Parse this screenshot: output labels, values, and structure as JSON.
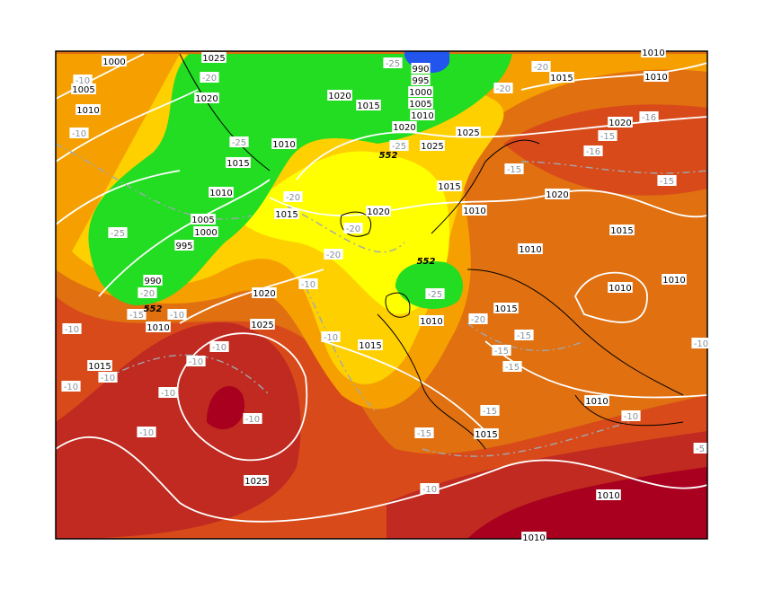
{
  "colors": {
    "green": "#22dd22",
    "yellow": "#ffff00",
    "yellow_orange": "#ffd000",
    "orange": "#f5a000",
    "dark_orange": "#e07010",
    "red_orange": "#d84a1a",
    "red": "#c02a20",
    "dark_red": "#a8001e",
    "blue": "#2255ee",
    "isobar": "#ffffff",
    "isotherm": "#a0a8b0"
  },
  "isobar_labels": [
    "1000",
    "1005",
    "1010",
    "1025",
    "1020",
    "1020",
    "1015",
    "990",
    "995",
    "1000",
    "1005",
    "1010",
    "1020",
    "1025",
    "1025",
    "1015",
    "1010",
    "1020",
    "1010",
    "1015",
    "1010",
    "1005",
    "1000",
    "995",
    "990",
    "1015",
    "1010",
    "1020",
    "1015",
    "1020",
    "1015",
    "1010",
    "1010",
    "1010",
    "1020",
    "1025",
    "1010",
    "1015",
    "1015",
    "1010",
    "1015",
    "1010",
    "1015",
    "1025",
    "1010",
    "1010",
    "1010"
  ],
  "isotherm_labels": [
    "-20",
    "-10",
    "-10",
    "-25",
    "-20",
    "-25",
    "-20",
    "-15",
    "-10",
    "-20",
    "-20",
    "-10",
    "-10",
    "-10",
    "-10",
    "-10",
    "-10",
    "-10",
    "-10",
    "-10",
    "-10",
    "-25",
    "-20",
    "-20",
    "-25",
    "-15",
    "-15",
    "-16",
    "-16",
    "-15",
    "-25",
    "-20",
    "-15",
    "-15",
    "-15",
    "-15",
    "-15",
    "-10",
    "-10",
    "-10",
    "-5"
  ],
  "height_labels": [
    "552",
    "552",
    "552"
  ]
}
